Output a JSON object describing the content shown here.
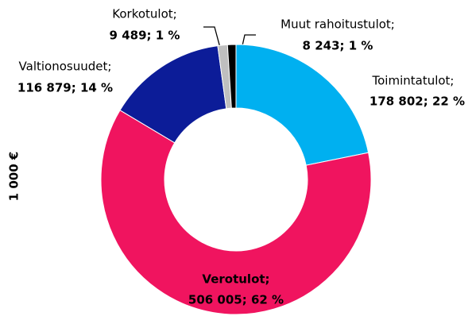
{
  "chart_data": {
    "type": "donut",
    "axis_label": "1 000 €",
    "categories": [
      "Toimintatulot;",
      "Verotulot;",
      "Valtionosuudet;",
      "Korkotulot;",
      "Muut rahoitustulot;"
    ],
    "values": [
      178802,
      506005,
      116879,
      9489,
      8243
    ],
    "value_labels": [
      "178 802; 22 %",
      "506 005; 62 %",
      "116 879; 14 %",
      "9 489; 1 %",
      "8 243; 1 %"
    ],
    "colors": [
      "#00b0f0",
      "#f0145f",
      "#0c1c98",
      "#bfbfbf",
      "#000000"
    ]
  }
}
